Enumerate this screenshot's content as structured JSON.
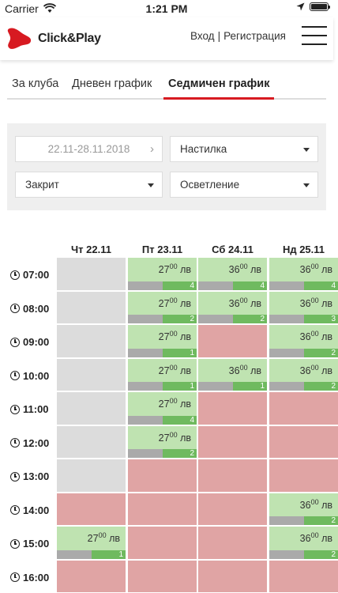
{
  "status_bar": {
    "carrier": "Carrier",
    "time": "1:21 PM"
  },
  "header": {
    "logo_text": "Click&Play",
    "login": "Вход",
    "separator": "|",
    "register": "Регистрация"
  },
  "tabs": [
    {
      "label": "За клуба"
    },
    {
      "label": "Дневен график"
    },
    {
      "label": "Седмичен график",
      "active": true
    }
  ],
  "filters": {
    "date_range": "22.11-28.11.2018",
    "surface": "Настилка",
    "cover": "Закрит",
    "lighting": "Осветление"
  },
  "schedule": {
    "days": [
      "Чт 22.11",
      "Пт 23.11",
      "Сб 24.11",
      "Нд 25.11"
    ],
    "price_unit": "лв",
    "rows": [
      {
        "time": "07:00",
        "cells": [
          {
            "state": "closed"
          },
          {
            "state": "available",
            "price": "27",
            "cents": "00",
            "count": "4"
          },
          {
            "state": "available",
            "price": "36",
            "cents": "00",
            "count": "4"
          },
          {
            "state": "available",
            "price": "36",
            "cents": "00",
            "count": "4"
          }
        ]
      },
      {
        "time": "08:00",
        "cells": [
          {
            "state": "closed"
          },
          {
            "state": "available",
            "price": "27",
            "cents": "00",
            "count": "2"
          },
          {
            "state": "available",
            "price": "36",
            "cents": "00",
            "count": "2"
          },
          {
            "state": "available",
            "price": "36",
            "cents": "00",
            "count": "3"
          }
        ]
      },
      {
        "time": "09:00",
        "cells": [
          {
            "state": "closed"
          },
          {
            "state": "available",
            "price": "27",
            "cents": "00",
            "count": "1"
          },
          {
            "state": "booked"
          },
          {
            "state": "available",
            "price": "36",
            "cents": "00",
            "count": "2"
          }
        ]
      },
      {
        "time": "10:00",
        "cells": [
          {
            "state": "closed"
          },
          {
            "state": "available",
            "price": "27",
            "cents": "00",
            "count": "1"
          },
          {
            "state": "available",
            "price": "36",
            "cents": "00",
            "count": "1"
          },
          {
            "state": "available",
            "price": "36",
            "cents": "00",
            "count": "2"
          }
        ]
      },
      {
        "time": "11:00",
        "cells": [
          {
            "state": "closed"
          },
          {
            "state": "available",
            "price": "27",
            "cents": "00",
            "count": "4"
          },
          {
            "state": "booked"
          },
          {
            "state": "booked"
          }
        ]
      },
      {
        "time": "12:00",
        "cells": [
          {
            "state": "closed"
          },
          {
            "state": "available",
            "price": "27",
            "cents": "00",
            "count": "2"
          },
          {
            "state": "booked"
          },
          {
            "state": "booked"
          }
        ]
      },
      {
        "time": "13:00",
        "cells": [
          {
            "state": "closed"
          },
          {
            "state": "booked"
          },
          {
            "state": "booked"
          },
          {
            "state": "booked"
          }
        ]
      },
      {
        "time": "14:00",
        "cells": [
          {
            "state": "booked"
          },
          {
            "state": "booked"
          },
          {
            "state": "booked"
          },
          {
            "state": "available",
            "price": "36",
            "cents": "00",
            "count": "2"
          }
        ]
      },
      {
        "time": "15:00",
        "cells": [
          {
            "state": "available",
            "price": "27",
            "cents": "00",
            "count": "1"
          },
          {
            "state": "booked"
          },
          {
            "state": "booked"
          },
          {
            "state": "available",
            "price": "36",
            "cents": "00",
            "count": "2"
          }
        ]
      },
      {
        "time": "16:00",
        "cells": [
          {
            "state": "booked"
          },
          {
            "state": "booked"
          },
          {
            "state": "booked"
          },
          {
            "state": "booked"
          }
        ]
      }
    ]
  },
  "colors": {
    "accent": "#d71a21",
    "closed": "#dcdcdc",
    "booked": "#e0a4a4",
    "available": "#bfe3b1",
    "count_bar": "#6fba5f"
  }
}
